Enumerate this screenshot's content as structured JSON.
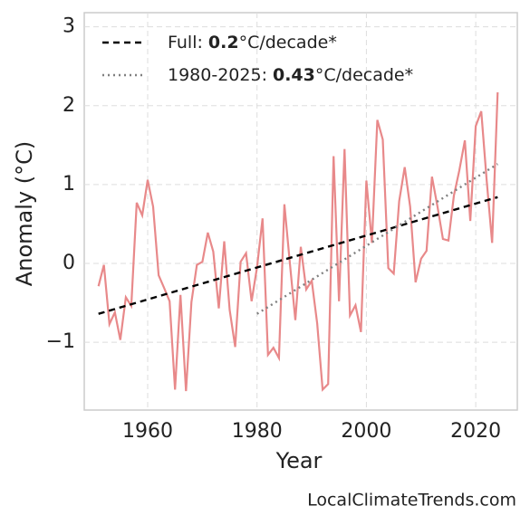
{
  "chart_data": {
    "type": "line",
    "xlabel": "Year",
    "ylabel": "Anomaly (°C)",
    "source": "LocalClimateTrends.com",
    "xlim": [
      1948.4,
      2027.6
    ],
    "ylim": [
      -1.86,
      3.18
    ],
    "xticks": [
      1960,
      1980,
      2000,
      2020
    ],
    "yticks": [
      {
        "value": -1,
        "label": "−1"
      },
      0,
      1,
      2,
      3
    ],
    "grid": true,
    "legend": "upper left",
    "series": [
      {
        "color": "#e8898a",
        "x": [
          1951,
          1952,
          1953,
          1954,
          1955,
          1956,
          1957,
          1958,
          1959,
          1960,
          1961,
          1962,
          1963,
          1964,
          1965,
          1966,
          1967,
          1968,
          1969,
          1970,
          1971,
          1972,
          1973,
          1974,
          1975,
          1976,
          1977,
          1978,
          1979,
          1980,
          1981,
          1982,
          1983,
          1984,
          1985,
          1986,
          1987,
          1988,
          1989,
          1990,
          1991,
          1992,
          1993,
          1994,
          1995,
          1996,
          1997,
          1998,
          1999,
          2000,
          2001,
          2002,
          2003,
          2004,
          2005,
          2006,
          2007,
          2008,
          2009,
          2010,
          2011,
          2012,
          2013,
          2014,
          2015,
          2016,
          2017,
          2018,
          2019,
          2020,
          2021,
          2022,
          2023,
          2024
        ],
        "values": [
          -0.29,
          -0.02,
          -0.77,
          -0.62,
          -0.97,
          -0.43,
          -0.54,
          0.77,
          0.61,
          1.06,
          0.72,
          -0.15,
          -0.31,
          -0.48,
          -1.6,
          -0.4,
          -1.62,
          -0.49,
          -0.02,
          0.02,
          0.39,
          0.15,
          -0.57,
          0.28,
          -0.59,
          -1.06,
          0.02,
          0.13,
          -0.48,
          -0.05,
          0.57,
          -1.16,
          -1.07,
          -1.2,
          0.75,
          0.01,
          -0.72,
          0.21,
          -0.33,
          -0.22,
          -0.76,
          -1.6,
          -1.53,
          1.36,
          -0.48,
          1.45,
          -0.66,
          -0.53,
          -0.87,
          1.05,
          0.26,
          1.82,
          1.57,
          -0.06,
          -0.13,
          0.79,
          1.22,
          0.72,
          -0.24,
          0.06,
          0.16,
          1.1,
          0.72,
          0.31,
          0.29,
          0.86,
          1.18,
          1.56,
          0.54,
          1.74,
          1.93,
          1.05,
          0.26,
          2.17
        ]
      },
      {
        "label": "Full:",
        "slope": 0.2,
        "unit": "°C/decade*",
        "color": "#000000",
        "dash": "7 5",
        "x": [
          1951,
          2024
        ],
        "values": [
          -0.64,
          0.84
        ]
      },
      {
        "label": "1980-2025:",
        "slope": 0.43,
        "unit": "°C/decade*",
        "color": "#808080",
        "dash": "2 4",
        "x": [
          1980,
          2024
        ],
        "values": [
          -0.64,
          1.26
        ]
      }
    ]
  }
}
